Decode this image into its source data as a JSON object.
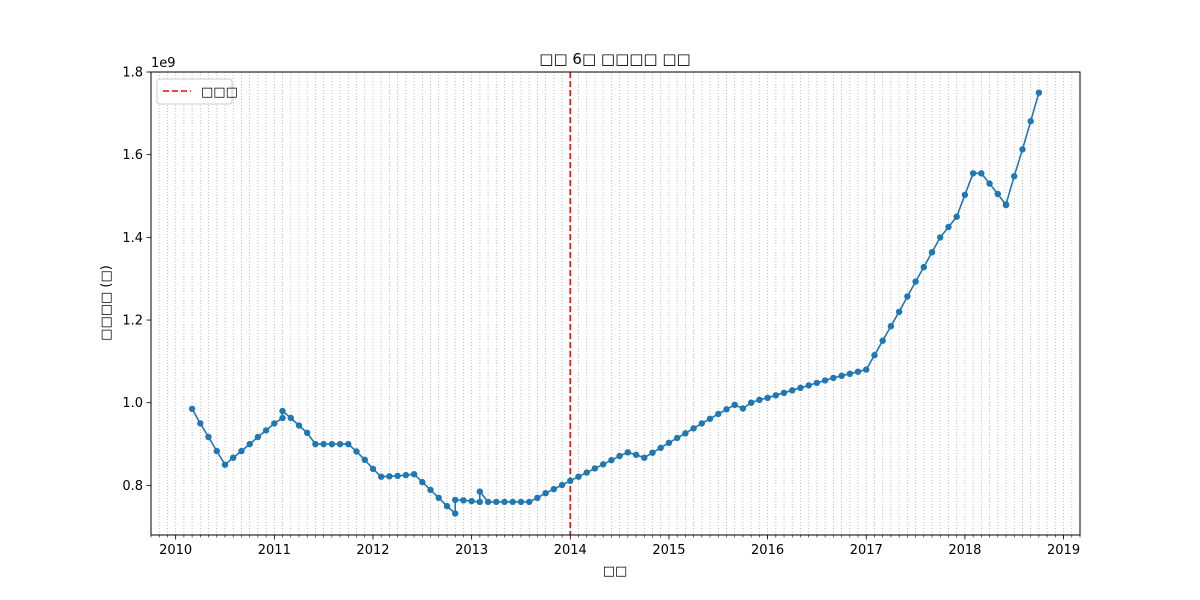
{
  "chart_data": {
    "type": "line",
    "title": "□□ 6□ □□□□ □□",
    "xlabel": "□□",
    "ylabel": "□□□□ (□)",
    "y_offset_text": "1e9",
    "xlim": [
      "2009-10-01",
      "2019-03-01"
    ],
    "ylim": [
      680000000,
      1800000000
    ],
    "x_ticks": [
      "2010",
      "2011",
      "2012",
      "2013",
      "2014",
      "2015",
      "2016",
      "2017",
      "2018",
      "2019"
    ],
    "y_ticks": [
      {
        "value": 800000000,
        "label": "0.8"
      },
      {
        "value": 1000000000,
        "label": "1.0"
      },
      {
        "value": 1200000000,
        "label": "1.2"
      },
      {
        "value": 1400000000,
        "label": "1.4"
      },
      {
        "value": 1600000000,
        "label": "1.6"
      },
      {
        "value": 1800000000,
        "label": "1.8"
      }
    ],
    "grid": {
      "x_minor_monthly": true,
      "style": "dotted",
      "color": "#b0b0b0"
    },
    "legend": {
      "placement": "top-left",
      "entries": [
        {
          "label": "□□□",
          "color": "#ff0000",
          "style": "dashed"
        }
      ]
    },
    "marker_line": {
      "x": "2014-01-01",
      "label": "□□□",
      "color": "#ff0000",
      "style": "dashed"
    },
    "series": [
      {
        "color": "#1f77b4",
        "points": [
          [
            "2010-03-01",
            985000000
          ],
          [
            "2010-04-01",
            950000000
          ],
          [
            "2010-05-01",
            917000000
          ],
          [
            "2010-06-01",
            883000000
          ],
          [
            "2010-07-01",
            850000000
          ],
          [
            "2010-08-01",
            867000000
          ],
          [
            "2010-09-01",
            883000000
          ],
          [
            "2010-10-01",
            900000000
          ],
          [
            "2010-11-01",
            917000000
          ],
          [
            "2010-12-01",
            933000000
          ],
          [
            "2011-01-01",
            950000000
          ],
          [
            "2011-02-01",
            963000000
          ],
          [
            "2011-02-01",
            980000000
          ],
          [
            "2011-03-01",
            963000000
          ],
          [
            "2011-04-01",
            945000000
          ],
          [
            "2011-05-01",
            927000000
          ],
          [
            "2011-06-01",
            900000000
          ],
          [
            "2011-07-01",
            900000000
          ],
          [
            "2011-08-01",
            900000000
          ],
          [
            "2011-09-01",
            900000000
          ],
          [
            "2011-10-01",
            900000000
          ],
          [
            "2011-11-01",
            882000000
          ],
          [
            "2011-12-01",
            862000000
          ],
          [
            "2012-01-01",
            840000000
          ],
          [
            "2012-02-01",
            821000000
          ],
          [
            "2012-03-01",
            822000000
          ],
          [
            "2012-04-01",
            823000000
          ],
          [
            "2012-05-01",
            825000000
          ],
          [
            "2012-06-01",
            827000000
          ],
          [
            "2012-07-01",
            808000000
          ],
          [
            "2012-08-01",
            789000000
          ],
          [
            "2012-09-01",
            770000000
          ],
          [
            "2012-10-01",
            750000000
          ],
          [
            "2012-11-01",
            732000000
          ],
          [
            "2012-11-01",
            765000000
          ],
          [
            "2012-12-01",
            764000000
          ],
          [
            "2013-01-01",
            762000000
          ],
          [
            "2013-02-01",
            760000000
          ],
          [
            "2013-02-01",
            785000000
          ],
          [
            "2013-03-01",
            760000000
          ],
          [
            "2013-04-01",
            760000000
          ],
          [
            "2013-05-01",
            760000000
          ],
          [
            "2013-06-01",
            760000000
          ],
          [
            "2013-07-01",
            760000000
          ],
          [
            "2013-08-01",
            760000000
          ],
          [
            "2013-09-01",
            770000000
          ],
          [
            "2013-10-01",
            781000000
          ],
          [
            "2013-11-01",
            791000000
          ],
          [
            "2013-12-01",
            801000000
          ],
          [
            "2014-01-01",
            811000000
          ],
          [
            "2014-02-01",
            821000000
          ],
          [
            "2014-03-01",
            831000000
          ],
          [
            "2014-04-01",
            841000000
          ],
          [
            "2014-05-01",
            851000000
          ],
          [
            "2014-06-01",
            861000000
          ],
          [
            "2014-07-01",
            871000000
          ],
          [
            "2014-08-01",
            880000000
          ],
          [
            "2014-09-01",
            874000000
          ],
          [
            "2014-10-01",
            867000000
          ],
          [
            "2014-11-01",
            879000000
          ],
          [
            "2014-12-01",
            891000000
          ],
          [
            "2015-01-01",
            903000000
          ],
          [
            "2015-02-01",
            915000000
          ],
          [
            "2015-03-01",
            926000000
          ],
          [
            "2015-04-01",
            938000000
          ],
          [
            "2015-05-01",
            950000000
          ],
          [
            "2015-06-01",
            961000000
          ],
          [
            "2015-07-01",
            973000000
          ],
          [
            "2015-08-01",
            984000000
          ],
          [
            "2015-09-01",
            995000000
          ],
          [
            "2015-10-01",
            986000000
          ],
          [
            "2015-11-01",
            1000000000
          ],
          [
            "2015-12-01",
            1007000000
          ],
          [
            "2016-01-01",
            1012000000
          ],
          [
            "2016-02-01",
            1018000000
          ],
          [
            "2016-03-01",
            1024000000
          ],
          [
            "2016-04-01",
            1030000000
          ],
          [
            "2016-05-01",
            1036000000
          ],
          [
            "2016-06-01",
            1042000000
          ],
          [
            "2016-07-01",
            1048000000
          ],
          [
            "2016-08-01",
            1054000000
          ],
          [
            "2016-09-01",
            1060000000
          ],
          [
            "2016-10-01",
            1065000000
          ],
          [
            "2016-11-01",
            1070000000
          ],
          [
            "2016-12-01",
            1075000000
          ],
          [
            "2017-01-01",
            1080000000
          ],
          [
            "2017-02-01",
            1115000000
          ],
          [
            "2017-03-01",
            1150000000
          ],
          [
            "2017-04-01",
            1185000000
          ],
          [
            "2017-05-01",
            1220000000
          ],
          [
            "2017-06-01",
            1257000000
          ],
          [
            "2017-07-01",
            1293000000
          ],
          [
            "2017-08-01",
            1328000000
          ],
          [
            "2017-09-01",
            1364000000
          ],
          [
            "2017-10-01",
            1400000000
          ],
          [
            "2017-11-01",
            1425000000
          ],
          [
            "2017-12-01",
            1450000000
          ],
          [
            "2018-01-01",
            1503000000
          ],
          [
            "2018-02-01",
            1555000000
          ],
          [
            "2018-03-01",
            1555000000
          ],
          [
            "2018-04-01",
            1530000000
          ],
          [
            "2018-05-01",
            1505000000
          ],
          [
            "2018-06-01",
            1478000000
          ],
          [
            "2018-06-01",
            1480000000
          ],
          [
            "2018-07-01",
            1548000000
          ],
          [
            "2018-08-01",
            1613000000
          ],
          [
            "2018-09-01",
            1681000000
          ],
          [
            "2018-10-01",
            1750000000
          ]
        ]
      }
    ]
  }
}
